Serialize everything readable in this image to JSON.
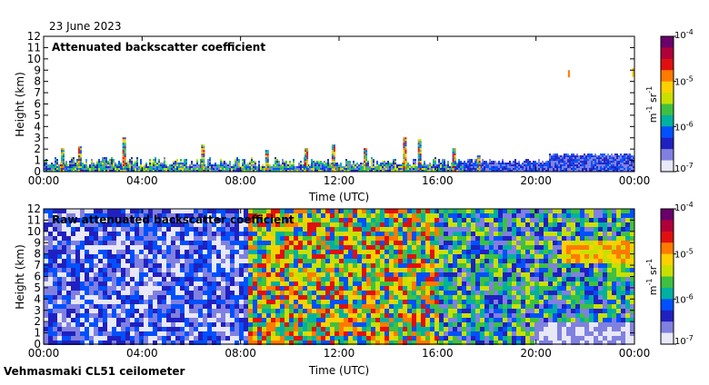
{
  "header": {
    "date": "23 June 2023"
  },
  "footer": {
    "instrument": "Vehmasmaki CL51 ceilometer"
  },
  "colorbar": {
    "tick_labels": [
      {
        "base": "10",
        "exp": "-4"
      },
      {
        "base": "10",
        "exp": "-5"
      },
      {
        "base": "10",
        "exp": "-6"
      },
      {
        "base": "10",
        "exp": "-7"
      }
    ],
    "unit_label": {
      "m": "m",
      "m_exp": "-1",
      "sr": " sr",
      "sr_exp": "-1"
    },
    "colors": [
      "#6a006a",
      "#b0003a",
      "#e01010",
      "#ff7a00",
      "#ffd000",
      "#c8e000",
      "#40c040",
      "#00b0a0",
      "#0050ff",
      "#2020c0",
      "#8080e0",
      "#e8e8f8"
    ]
  },
  "chart_data": [
    {
      "type": "heatmap",
      "title": "Attenuated backscatter coefficient",
      "xlabel": "Time (UTC)",
      "ylabel": "Height (km)",
      "x_ticks": [
        "00:00",
        "04:00",
        "08:00",
        "12:00",
        "16:00",
        "20:00",
        "00:00"
      ],
      "y_ticks": [
        "0",
        "1",
        "2",
        "3",
        "4",
        "5",
        "6",
        "7",
        "8",
        "9",
        "10",
        "11",
        "12"
      ],
      "xlim_hours": [
        0,
        24
      ],
      "ylim_km": [
        0,
        12
      ],
      "color_scale": {
        "log": true,
        "min": 1e-07,
        "max": 0.0001,
        "unit": "m-1 sr-1"
      }
    },
    {
      "type": "heatmap",
      "title": "Raw attenuated backscatter coefficient",
      "xlabel": "Time (UTC)",
      "ylabel": "Height (km)",
      "x_ticks": [
        "00:00",
        "04:00",
        "08:00",
        "12:00",
        "16:00",
        "20:00",
        "00:00"
      ],
      "y_ticks": [
        "0",
        "1",
        "2",
        "3",
        "4",
        "5",
        "6",
        "7",
        "8",
        "9",
        "10",
        "11",
        "12"
      ],
      "xlim_hours": [
        0,
        24
      ],
      "ylim_km": [
        0,
        12
      ],
      "color_scale": {
        "log": true,
        "min": 1e-07,
        "max": 0.0001,
        "unit": "m-1 sr-1"
      }
    }
  ]
}
